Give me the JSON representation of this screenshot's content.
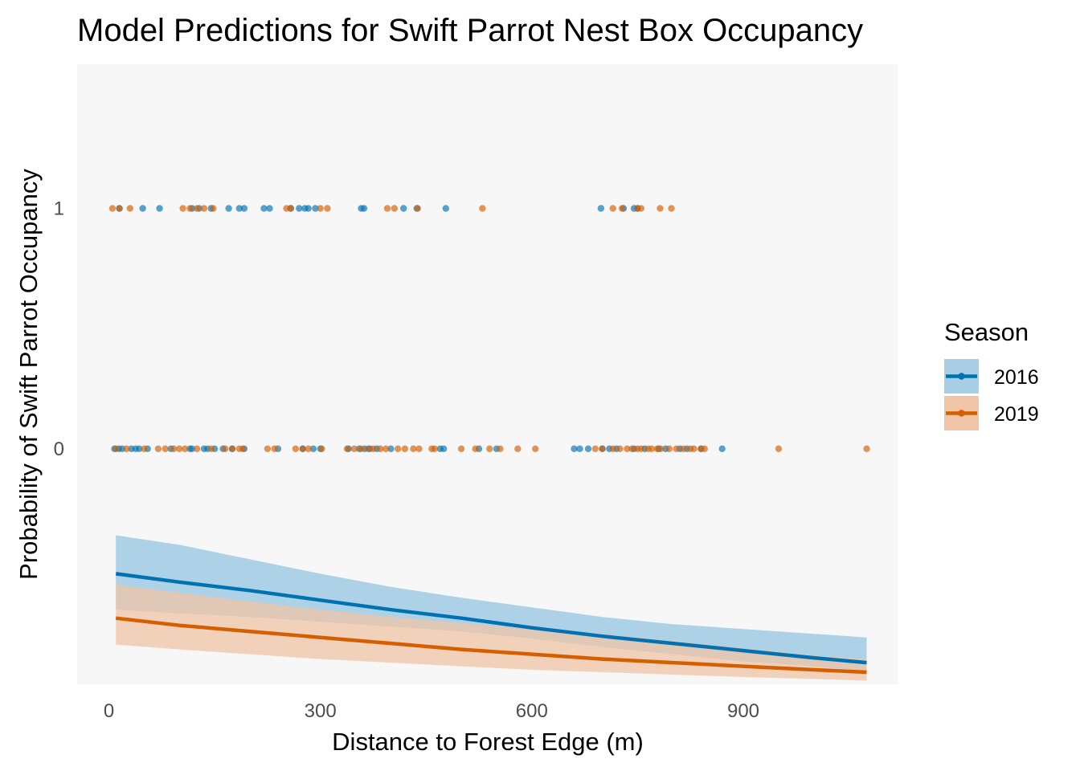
{
  "chart_data": {
    "type": "scatter",
    "title": "Model Predictions for Swift Parrot Nest Box Occupancy",
    "xlabel": "Distance to Forest Edge (m)",
    "ylabel": "Probability of Swift Parrot Occupancy",
    "xlim": [
      -45,
      1120
    ],
    "ylim": [
      -0.98,
      1.6
    ],
    "x_ticks": [
      0,
      300,
      600,
      900
    ],
    "x_tick_labels": [
      "0",
      "300",
      "600",
      "900"
    ],
    "y_ticks": [
      0,
      1
    ],
    "y_tick_labels": [
      "0",
      "1"
    ],
    "grid": false,
    "panel_background": "#f7f7f7",
    "legend": {
      "title": "Season",
      "position": "right",
      "entries": [
        "2016",
        "2019"
      ]
    },
    "series": [
      {
        "name": "2016",
        "color": "#0072b2",
        "ribbon_color": "#a9cfe6",
        "observations": {
          "occupied_1": [
            15,
            48,
            72,
            118,
            128,
            145,
            170,
            185,
            192,
            220,
            228,
            258,
            270,
            278,
            283,
            293,
            358,
            362,
            418,
            437,
            478,
            698,
            730,
            745,
            750
          ],
          "unoccupied_0": [
            8,
            14,
            19,
            32,
            38,
            43,
            55,
            88,
            115,
            118,
            135,
            140,
            150,
            162,
            175,
            192,
            240,
            275,
            290,
            300,
            340,
            355,
            363,
            370,
            380,
            400,
            470,
            475,
            525,
            550,
            660,
            668,
            680,
            700,
            710,
            720,
            745,
            760,
            780,
            790,
            810,
            820,
            840,
            870
          ]
        },
        "fit": {
          "x": [
            10,
            100,
            200,
            300,
            400,
            500,
            600,
            700,
            800,
            900,
            1000,
            1075
          ],
          "y": [
            -0.52,
            -0.555,
            -0.59,
            -0.63,
            -0.67,
            -0.705,
            -0.745,
            -0.78,
            -0.81,
            -0.84,
            -0.87,
            -0.89
          ]
        },
        "ribbon": {
          "x": [
            10,
            100,
            200,
            300,
            400,
            500,
            600,
            700,
            800,
            900,
            1000,
            1075
          ],
          "lower": [
            -0.67,
            -0.685,
            -0.7,
            -0.72,
            -0.74,
            -0.76,
            -0.79,
            -0.825,
            -0.855,
            -0.885,
            -0.905,
            -0.925
          ],
          "upper": [
            -0.36,
            -0.4,
            -0.46,
            -0.52,
            -0.575,
            -0.62,
            -0.66,
            -0.7,
            -0.73,
            -0.75,
            -0.77,
            -0.785
          ]
        }
      },
      {
        "name": "2019",
        "color": "#d55e00",
        "ribbon_color": "#f0c4a6",
        "observations": {
          "occupied_1": [
            5,
            15,
            30,
            105,
            115,
            125,
            135,
            148,
            252,
            258,
            300,
            310,
            395,
            405,
            438,
            530,
            715,
            728,
            750,
            755,
            782,
            798
          ],
          "unoccupied_0": [
            10,
            25,
            50,
            70,
            80,
            92,
            100,
            108,
            125,
            145,
            165,
            175,
            185,
            190,
            225,
            235,
            265,
            275,
            283,
            302,
            338,
            348,
            358,
            368,
            375,
            385,
            393,
            410,
            420,
            432,
            440,
            458,
            462,
            500,
            520,
            540,
            555,
            580,
            605,
            690,
            700,
            715,
            725,
            735,
            742,
            750,
            755,
            765,
            770,
            778,
            783,
            795,
            805,
            815,
            825,
            830,
            840,
            845,
            950,
            1075
          ]
        },
        "fit": {
          "x": [
            10,
            100,
            200,
            300,
            400,
            500,
            600,
            700,
            800,
            900,
            1000,
            1075
          ],
          "y": [
            -0.705,
            -0.735,
            -0.76,
            -0.785,
            -0.81,
            -0.835,
            -0.855,
            -0.875,
            -0.89,
            -0.905,
            -0.92,
            -0.93
          ]
        },
        "ribbon": {
          "x": [
            10,
            100,
            200,
            300,
            400,
            500,
            600,
            700,
            800,
            900,
            1000,
            1075
          ],
          "lower": [
            -0.815,
            -0.835,
            -0.855,
            -0.875,
            -0.89,
            -0.905,
            -0.92,
            -0.93,
            -0.94,
            -0.95,
            -0.958,
            -0.965
          ],
          "upper": [
            -0.565,
            -0.6,
            -0.635,
            -0.67,
            -0.7,
            -0.725,
            -0.75,
            -0.77,
            -0.8,
            -0.83,
            -0.86,
            -0.875
          ]
        }
      }
    ]
  }
}
